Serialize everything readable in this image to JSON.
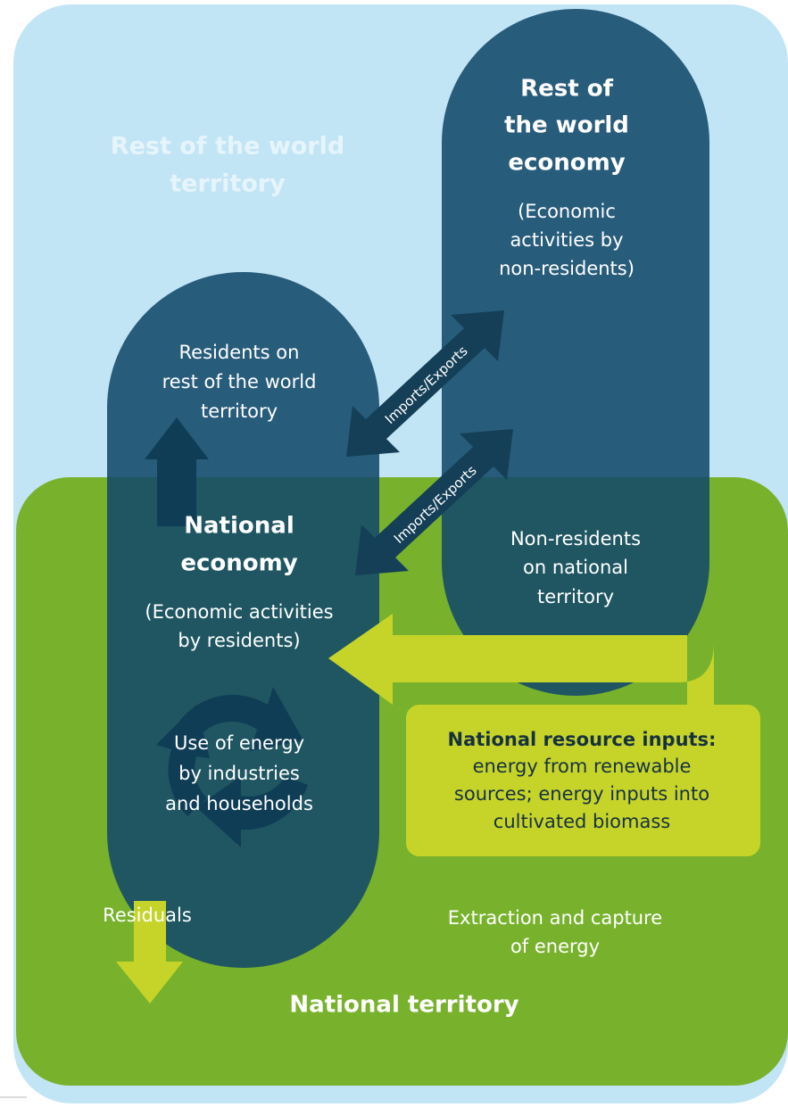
{
  "rest_of_world_territory": {
    "lines": [
      "Rest of the world",
      "territory"
    ]
  },
  "rest_of_world_economy": {
    "title_lines": [
      "Rest of",
      "the world",
      "economy"
    ],
    "description_lines": [
      "(Economic",
      "activities by",
      "non-residents)"
    ]
  },
  "residents_abroad": {
    "lines": [
      "Residents on",
      "rest of the world",
      "territory"
    ]
  },
  "national_economy": {
    "title_lines": [
      "National",
      "economy"
    ],
    "description_lines": [
      "(Economic activities",
      "by residents)"
    ]
  },
  "energy_use": {
    "lines": [
      "Use of energy",
      "by industries",
      "and households"
    ]
  },
  "non_residents": {
    "lines": [
      "Non-residents",
      "on national",
      "territory"
    ]
  },
  "resource_inputs": {
    "title": "National resource inputs:",
    "lines": [
      "energy from renewable",
      "sources; energy inputs into",
      "cultivated biomass"
    ]
  },
  "flows": {
    "imports_exports": [
      "Imports/Exports",
      "Imports/Exports"
    ],
    "extraction_lines": [
      "Extraction and capture",
      "of energy"
    ],
    "residuals": "Residuals"
  },
  "national_territory": "National territory"
}
